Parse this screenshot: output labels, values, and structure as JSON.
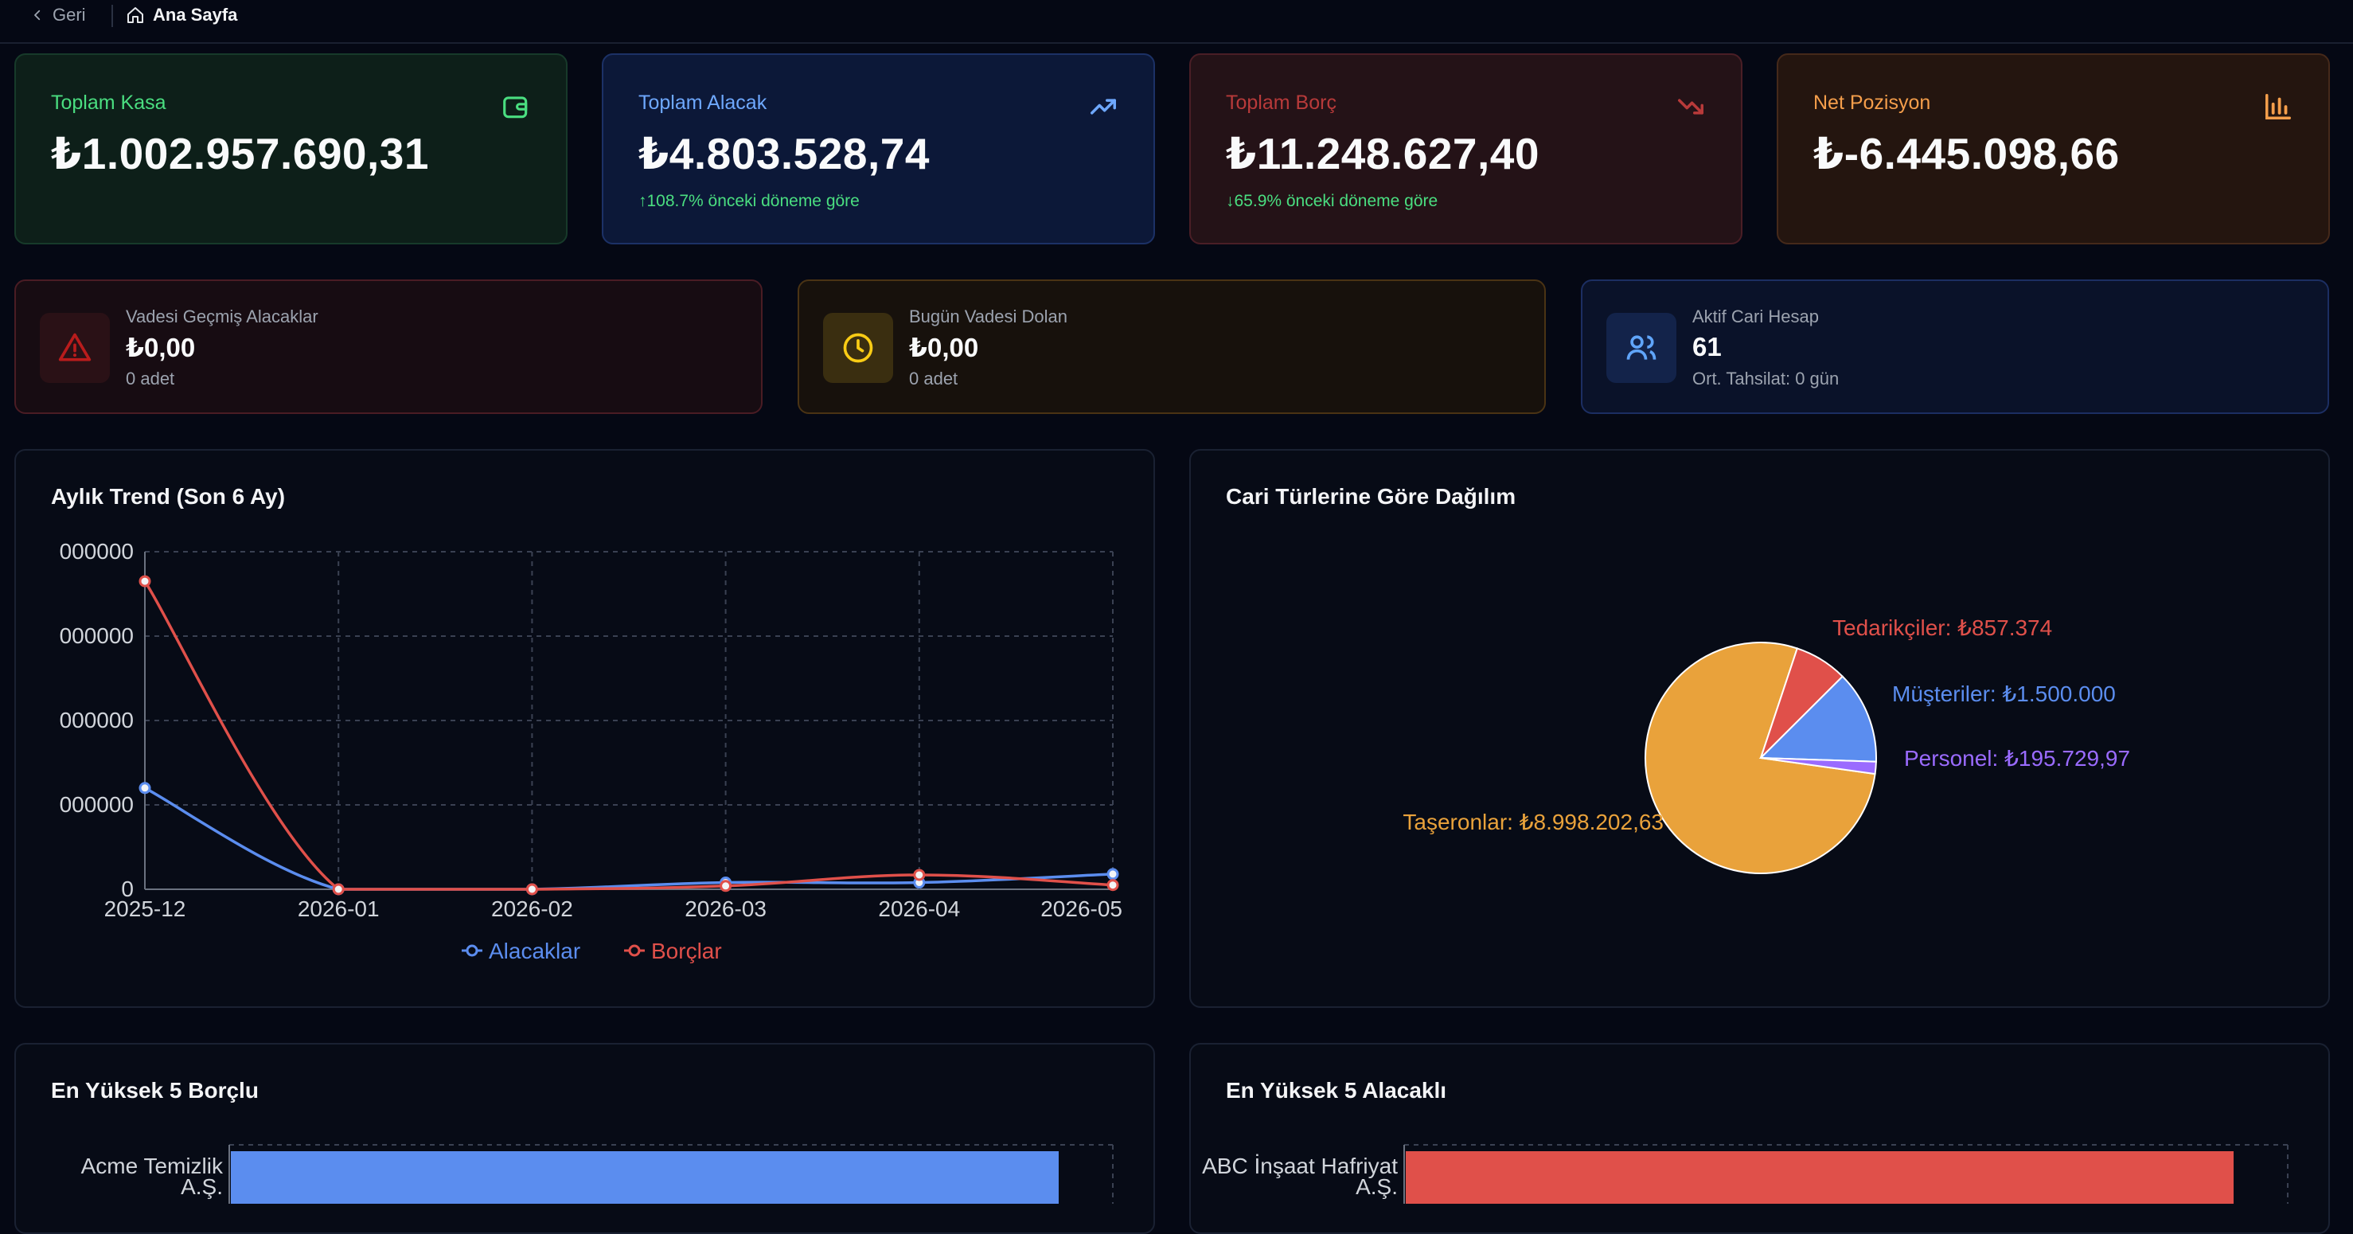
{
  "nav": {
    "back_label": "Geri",
    "home_label": "Ana Sayfa"
  },
  "stats": [
    {
      "label": "Toplam Kasa",
      "value": "₺1.002.957.690,31",
      "change": "",
      "icon": "wallet-icon",
      "color": "#4ade80"
    },
    {
      "label": "Toplam Alacak",
      "value": "₺4.803.528,74",
      "change": "↑108.7% önceki döneme göre",
      "icon": "trending-up-icon",
      "color": "#6ea8fe"
    },
    {
      "label": "Toplam Borç",
      "value": "₺11.248.627,40",
      "change": "↓65.9% önceki döneme göre",
      "icon": "trending-down-icon",
      "color": "#b83a3a"
    },
    {
      "label": "Net Pozisyon",
      "value": "₺-6.445.098,66",
      "change": "",
      "icon": "bar-chart-icon",
      "color": "#f59e4b"
    }
  ],
  "alerts": [
    {
      "title": "Vadesi Geçmiş Alacaklar",
      "value": "₺0,00",
      "sub": "0 adet",
      "icon": "warning-triangle-icon",
      "color": "#b91c1c"
    },
    {
      "title": "Bugün Vadesi Dolan",
      "value": "₺0,00",
      "sub": "0 adet",
      "icon": "clock-icon",
      "color": "#facc15"
    },
    {
      "title": "Aktif Cari Hesap",
      "value": "61",
      "sub": "Ort. Tahsilat: 0 gün",
      "icon": "users-icon",
      "color": "#60a5fa"
    }
  ],
  "trend": {
    "title": "Aylık Trend (Son 6 Ay)",
    "y_ticks": [
      "000000",
      "000000",
      "000000",
      "000000",
      "0"
    ]
  },
  "distribution": {
    "title": "Cari Türlerine Göre Dağılım"
  },
  "top_debtors": {
    "title": "En Yüksek 5 Borçlu"
  },
  "top_creditors": {
    "title": "En Yüksek 5 Alacaklı"
  },
  "chart_data": [
    {
      "type": "line",
      "title": "Aylık Trend (Son 6 Ay)",
      "x": [
        "2025-12",
        "2026-01",
        "2026-02",
        "2026-03",
        "2026-04",
        "2026-05"
      ],
      "ylim": [
        0,
        4000000
      ],
      "grid": true,
      "legend": "bottom",
      "series": [
        {
          "name": "Alacaklar",
          "color": "#5b8def",
          "values": [
            1200000,
            0,
            0,
            80000,
            80000,
            180000
          ]
        },
        {
          "name": "Borçlar",
          "color": "#e0504a",
          "values": [
            3650000,
            0,
            0,
            40000,
            170000,
            50000
          ]
        }
      ]
    },
    {
      "type": "pie",
      "title": "Cari Türlerine Göre Dağılım",
      "slices": [
        {
          "label": "Taşeronlar: ₺8.998.202,63",
          "value": 8998202.63,
          "color": "#e9a23b"
        },
        {
          "label": "Tedarikçiler: ₺857.374",
          "value": 857374,
          "color": "#e0504a"
        },
        {
          "label": "Müşteriler: ₺1.500.000",
          "value": 1500000,
          "color": "#5b8def"
        },
        {
          "label": "Personel: ₺195.729,97",
          "value": 195729.97,
          "color": "#9a6bff"
        }
      ]
    },
    {
      "type": "bar",
      "title": "En Yüksek 5 Borçlu",
      "categories": [
        "Acme Temizlik A.Ş."
      ],
      "values": [
        1
      ],
      "color": "#5b8def"
    },
    {
      "type": "bar",
      "title": "En Yüksek 5 Alacaklı",
      "categories": [
        "ABC İnşaat Hafriyat A.Ş."
      ],
      "values": [
        1
      ],
      "color": "#e0504a"
    }
  ]
}
